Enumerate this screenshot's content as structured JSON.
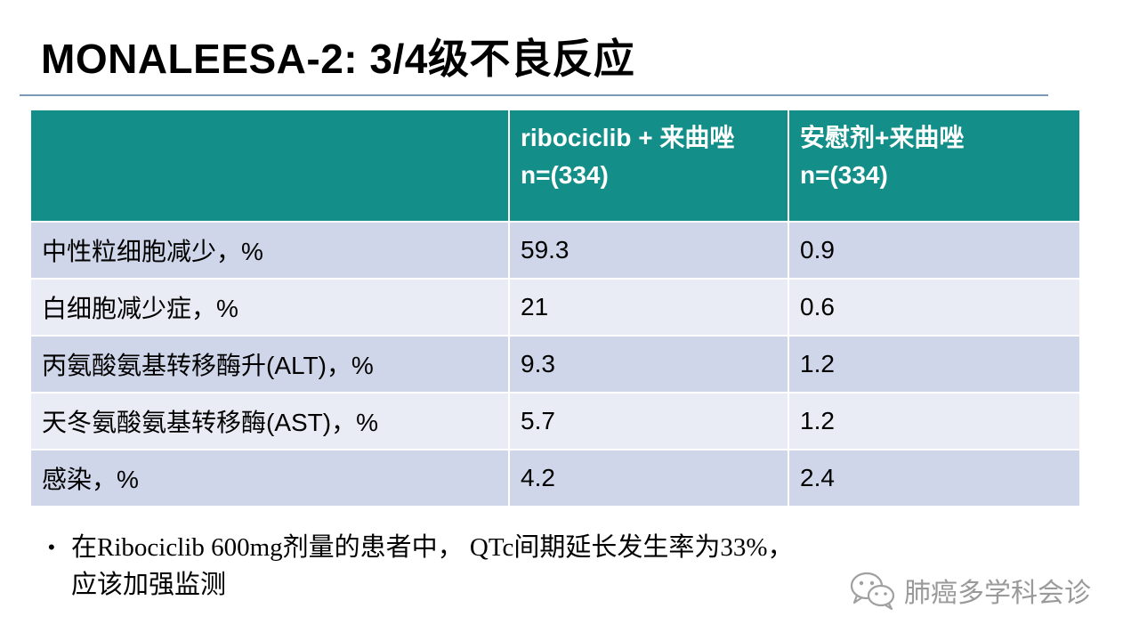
{
  "slide": {
    "title": "MONALEESA-2: 3/4级不良反应"
  },
  "table": {
    "headers": [
      "",
      "ribociclib + 来曲唑\nn=(334)",
      "安慰剂+来曲唑\nn=(334)"
    ],
    "header_lines": [
      [],
      [
        "ribociclib + 来曲唑",
        "n=(334)"
      ],
      [
        "安慰剂+来曲唑",
        "n=(334)"
      ]
    ],
    "rows": [
      [
        "中性粒细胞减少，%",
        "59.3",
        "0.9"
      ],
      [
        "白细胞减少症，%",
        "21",
        "0.6"
      ],
      [
        "丙氨酸氨基转移酶升(ALT)，%",
        "9.3",
        "1.2"
      ],
      [
        "天冬氨酸氨基转移酶(AST)，%",
        "5.7",
        "1.2"
      ],
      [
        "感染，%",
        "4.2",
        "2.4"
      ]
    ],
    "colors": {
      "header_bg": "#148e89",
      "row_odd": "#cfd6e9",
      "row_even": "#e9ecf5"
    }
  },
  "bullet": {
    "symbol": "•",
    "lines": [
      "在Ribociclib 600mg剂量的患者中， QTc间期延长发生率为33%，",
      "应该加强监测"
    ]
  },
  "watermark": {
    "icon": "wechat-icon",
    "text": "肺癌多学科会诊"
  }
}
